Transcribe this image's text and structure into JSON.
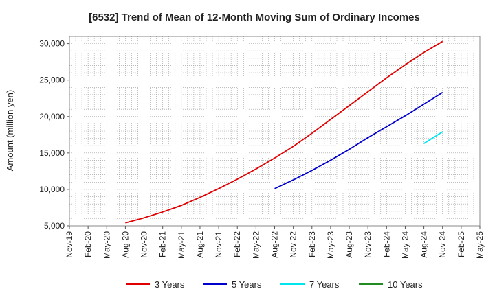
{
  "chart_data": {
    "type": "line",
    "title": "[6532]  Trend of Mean of 12-Month Moving Sum of Ordinary Incomes",
    "xlabel": "",
    "ylabel": "Amount (million yen)",
    "ylim": [
      5000,
      31000
    ],
    "yticks": [
      5000,
      10000,
      15000,
      20000,
      25000,
      30000
    ],
    "ytick_labels": [
      "5,000",
      "10,000",
      "15,000",
      "20,000",
      "25,000",
      "30,000"
    ],
    "x_range": [
      "2019-11",
      "2025-05"
    ],
    "x_ticks": [
      "Nov-19",
      "Feb-20",
      "May-20",
      "Aug-20",
      "Nov-20",
      "Feb-21",
      "May-21",
      "Aug-21",
      "Nov-21",
      "Feb-22",
      "May-22",
      "Aug-22",
      "Nov-22",
      "Feb-23",
      "May-23",
      "Aug-23",
      "Nov-23",
      "Feb-24",
      "May-24",
      "Aug-24",
      "Nov-24",
      "Feb-25",
      "May-25"
    ],
    "grid": true,
    "legend_position": "bottom",
    "series": [
      {
        "name": "3 Years",
        "color": "#e00000",
        "points": [
          [
            "2020-08",
            5400
          ],
          [
            "2020-11",
            6100
          ],
          [
            "2021-02",
            6900
          ],
          [
            "2021-05",
            7800
          ],
          [
            "2021-08",
            8900
          ],
          [
            "2021-11",
            10100
          ],
          [
            "2022-02",
            11400
          ],
          [
            "2022-05",
            12800
          ],
          [
            "2022-08",
            14300
          ],
          [
            "2022-11",
            15900
          ],
          [
            "2023-02",
            17700
          ],
          [
            "2023-05",
            19600
          ],
          [
            "2023-08",
            21500
          ],
          [
            "2023-11",
            23400
          ],
          [
            "2024-02",
            25300
          ],
          [
            "2024-05",
            27100
          ],
          [
            "2024-08",
            28800
          ],
          [
            "2024-11",
            30300
          ]
        ]
      },
      {
        "name": "5 Years",
        "color": "#0000cc",
        "points": [
          [
            "2022-08",
            10100
          ],
          [
            "2022-11",
            11300
          ],
          [
            "2023-02",
            12600
          ],
          [
            "2023-05",
            14000
          ],
          [
            "2023-08",
            15500
          ],
          [
            "2023-11",
            17100
          ],
          [
            "2024-02",
            18600
          ],
          [
            "2024-05",
            20100
          ],
          [
            "2024-08",
            21700
          ],
          [
            "2024-11",
            23300
          ]
        ]
      },
      {
        "name": "7 Years",
        "color": "#00e5ee",
        "points": [
          [
            "2024-08",
            16300
          ],
          [
            "2024-11",
            17900
          ]
        ]
      },
      {
        "name": "10 Years",
        "color": "#228b22",
        "points": []
      }
    ]
  }
}
